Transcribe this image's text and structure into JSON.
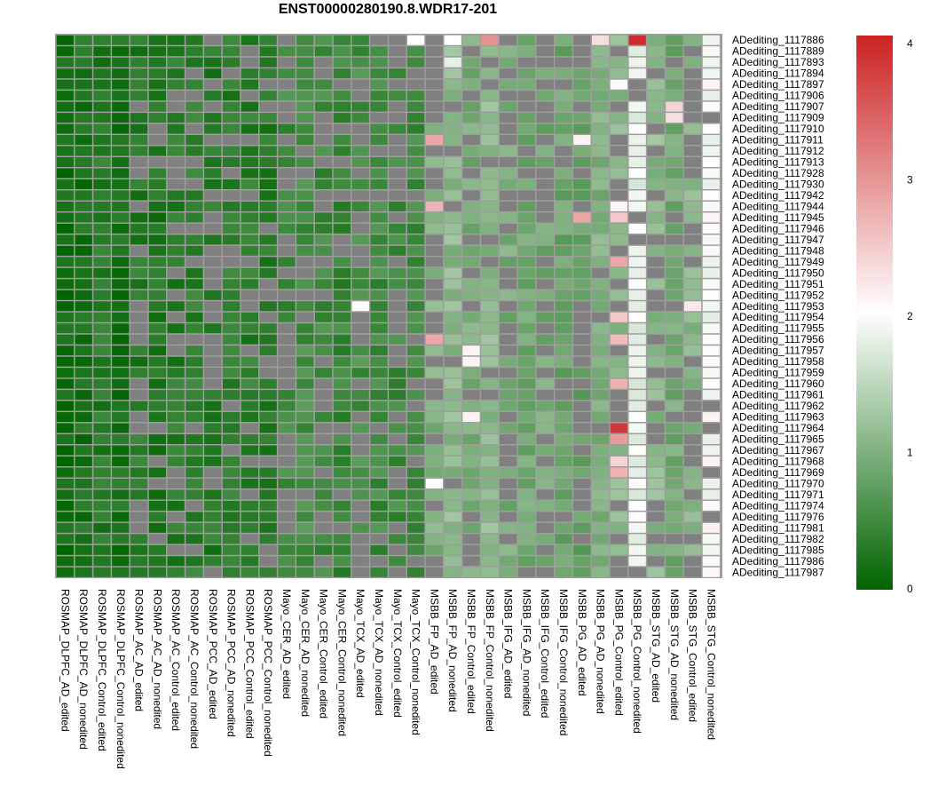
{
  "chart_data": {
    "type": "heatmap",
    "title": "ENST00000280190.8.WDR17-201",
    "columns": [
      "ROSMAP_DLPFC_AD_edited",
      "ROSMAP_DLPFC_AD_nonedited",
      "ROSMAP_DLPFC_Control_edited",
      "ROSMAP_DLPFC_Control_nonedited",
      "ROSMAP_AC_AD_edited",
      "ROSMAP_AC_AD_nonedited",
      "ROSMAP_AC_Control_edited",
      "ROSMAP_AC_Control_nonedited",
      "ROSMAP_PCC_AD_edited",
      "ROSMAP_PCC_AD_nonedited",
      "ROSMAP_PCC_Control_edited",
      "ROSMAP_PCC_Control_nonedited",
      "Mayo_CER_AD_edited",
      "Mayo_CER_AD_nonedited",
      "Mayo_CER_Control_edited",
      "Mayo_CER_Control_nonedited",
      "Mayo_TCX_AD_edited",
      "Mayo_TCX_AD_nonedited",
      "Mayo_TCX_Control_edited",
      "Mayo_TCX_Control_nonedited",
      "MSBB_FP_AD_edited",
      "MSBB_FP_AD_nonedited",
      "MSBB_FP_Control_edited",
      "MSBB_FP_Control_nonedited",
      "MSBB_IFG_AD_edited",
      "MSBB_IFG_AD_nonedited",
      "MSBB_IFG_Control_edited",
      "MSBB_IFG_Control_nonedited",
      "MSBB_PG_AD_edited",
      "MSBB_PG_AD_nonedited",
      "MSBB_PG_Control_edited",
      "MSBB_PG_Control_nonedited",
      "MSBB_STG_AD_edited",
      "MSBB_STG_AD_nonedited",
      "MSBB_STG_Control_edited",
      "MSBB_STG_Control_nonedited"
    ],
    "rows": [
      "ADediting_1117886",
      "ADediting_1117889",
      "ADediting_1117893",
      "ADediting_1117894",
      "ADediting_1117897",
      "ADediting_1117906",
      "ADediting_1117907",
      "ADediting_1117909",
      "ADediting_1117910",
      "ADediting_1117911",
      "ADediting_1117912",
      "ADediting_1117913",
      "ADediting_1117928",
      "ADediting_1117930",
      "ADediting_1117942",
      "ADediting_1117944",
      "ADediting_1117945",
      "ADediting_1117946",
      "ADediting_1117947",
      "ADediting_1117948",
      "ADediting_1117949",
      "ADediting_1117950",
      "ADediting_1117951",
      "ADediting_1117952",
      "ADediting_1117953",
      "ADediting_1117954",
      "ADediting_1117955",
      "ADediting_1117956",
      "ADediting_1117957",
      "ADediting_1117958",
      "ADediting_1117959",
      "ADediting_1117960",
      "ADediting_1117961",
      "ADediting_1117962",
      "ADediting_1117963",
      "ADediting_1117964",
      "ADediting_1117965",
      "ADediting_1117967",
      "ADediting_1117968",
      "ADediting_1117969",
      "ADediting_1117970",
      "ADediting_1117971",
      "ADediting_1117974",
      "ADediting_1117976",
      "ADediting_1117981",
      "ADediting_1117982",
      "ADediting_1117985",
      "ADediting_1117986",
      "ADediting_1117987"
    ],
    "color_scale": {
      "min": 0,
      "max": 4,
      "colors": [
        "#006400",
        "#ffffff",
        "#cc2222"
      ],
      "ticks": [
        0,
        1,
        2,
        3,
        4
      ]
    },
    "na_color": "#808080",
    "column_base": [
      0.1,
      0.2,
      0.3,
      0.2,
      0.3,
      0.25,
      0.3,
      0.35,
      0.3,
      0.35,
      0.35,
      0.3,
      0.5,
      0.55,
      0.5,
      0.45,
      0.55,
      0.5,
      0.5,
      0.5,
      1.0,
      1.1,
      0.95,
      1.1,
      0.95,
      0.9,
      0.9,
      0.85,
      0.8,
      1.0,
      1.1,
      1.85,
      1.1,
      0.9,
      1.05,
      1.95
    ],
    "column_na_rate": [
      0,
      0,
      0,
      0,
      0.35,
      0.15,
      0.35,
      0.2,
      0.35,
      0.2,
      0.35,
      0.2,
      0.4,
      0.2,
      0.45,
      0.15,
      0.55,
      0.2,
      0.55,
      0.2,
      0.5,
      0.15,
      0.5,
      0.15,
      0.5,
      0.15,
      0.5,
      0.15,
      0.45,
      0.15,
      0.5,
      0.1,
      0.45,
      0.15,
      0.55,
      0.1
    ],
    "notable_cells": [
      {
        "row": 0,
        "col": 19,
        "value": 2.0
      },
      {
        "row": 0,
        "col": 21,
        "value": 2.0
      },
      {
        "row": 0,
        "col": 23,
        "value": 3.0
      },
      {
        "row": 0,
        "col": 29,
        "value": 2.3
      },
      {
        "row": 0,
        "col": 31,
        "value": 3.9
      },
      {
        "row": 2,
        "col": 21,
        "value": 1.8
      },
      {
        "row": 4,
        "col": 30,
        "value": 2.0
      },
      {
        "row": 6,
        "col": 33,
        "value": 2.4
      },
      {
        "row": 7,
        "col": 33,
        "value": 2.3
      },
      {
        "row": 9,
        "col": 20,
        "value": 2.8
      },
      {
        "row": 9,
        "col": 28,
        "value": 2.1
      },
      {
        "row": 15,
        "col": 20,
        "value": 2.7
      },
      {
        "row": 15,
        "col": 30,
        "value": 2.1
      },
      {
        "row": 16,
        "col": 28,
        "value": 2.8
      },
      {
        "row": 16,
        "col": 30,
        "value": 2.5
      },
      {
        "row": 20,
        "col": 30,
        "value": 2.8
      },
      {
        "row": 24,
        "col": 16,
        "value": 2.0
      },
      {
        "row": 24,
        "col": 34,
        "value": 2.2
      },
      {
        "row": 25,
        "col": 30,
        "value": 2.5
      },
      {
        "row": 27,
        "col": 20,
        "value": 2.8
      },
      {
        "row": 27,
        "col": 30,
        "value": 2.6
      },
      {
        "row": 28,
        "col": 22,
        "value": 2.1
      },
      {
        "row": 29,
        "col": 22,
        "value": 2.1
      },
      {
        "row": 31,
        "col": 30,
        "value": 2.7
      },
      {
        "row": 34,
        "col": 22,
        "value": 2.1
      },
      {
        "row": 35,
        "col": 30,
        "value": 3.8
      },
      {
        "row": 36,
        "col": 30,
        "value": 2.9
      },
      {
        "row": 38,
        "col": 30,
        "value": 2.4
      },
      {
        "row": 39,
        "col": 30,
        "value": 2.7
      },
      {
        "row": 40,
        "col": 20,
        "value": 2.0
      }
    ]
  }
}
